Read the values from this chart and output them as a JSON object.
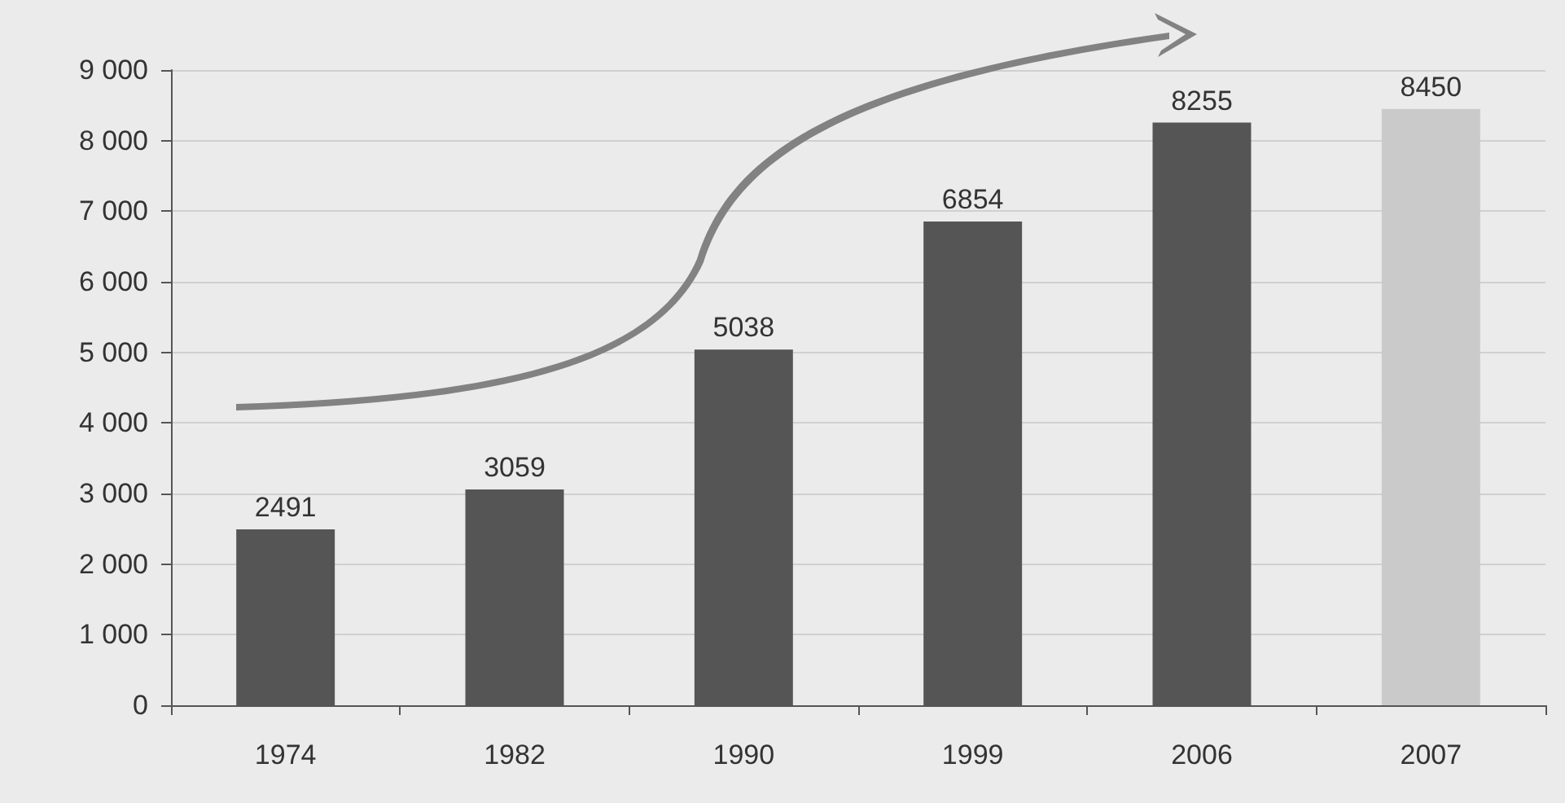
{
  "chart_data": {
    "type": "bar",
    "categories": [
      "1974",
      "1982",
      "1990",
      "1999",
      "2006",
      "2007"
    ],
    "values": [
      2491,
      3059,
      5038,
      6854,
      8255,
      8450
    ],
    "colors": [
      "#555555",
      "#555555",
      "#555555",
      "#555555",
      "#555555",
      "#cacaca"
    ],
    "ylim": [
      0,
      9000
    ],
    "yticks": [
      0,
      {
        "value": 1000,
        "label": "1 000"
      },
      {
        "value": 2000,
        "label": "2 000"
      },
      {
        "value": 3000,
        "label": "3 000"
      },
      {
        "value": 4000,
        "label": "4 000"
      },
      {
        "value": 5000,
        "label": "5 000"
      },
      {
        "value": 6000,
        "label": "6 000"
      },
      {
        "value": 7000,
        "label": "7 000"
      },
      {
        "value": 8000,
        "label": "8 000"
      },
      {
        "value": 9000,
        "label": "9 000"
      }
    ],
    "grid": "y",
    "data_labels": true
  }
}
